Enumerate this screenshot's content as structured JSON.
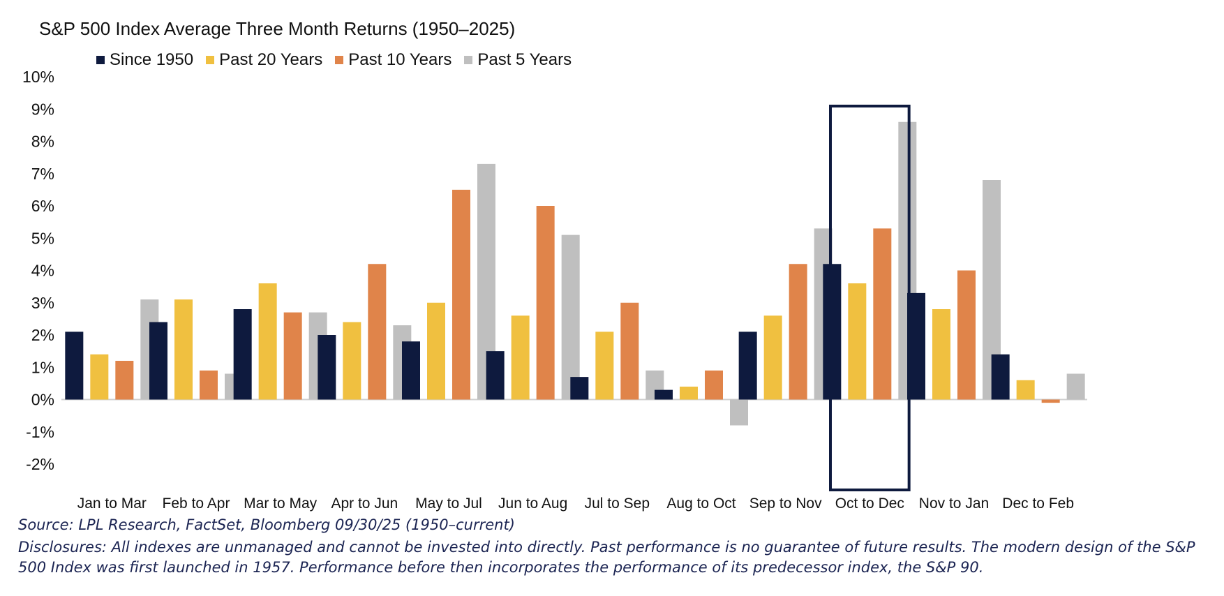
{
  "chart_data": {
    "type": "bar",
    "title": "S&P 500 Index Average Three Month Returns (1950–2025)",
    "categories": [
      "Jan to Mar",
      "Feb to Apr",
      "Mar to May",
      "Apr to Jun",
      "May to Jul",
      "Jun to Aug",
      "Jul to Sep",
      "Aug to Oct",
      "Sep to Nov",
      "Oct to Dec",
      "Nov to Jan",
      "Dec to Feb"
    ],
    "series": [
      {
        "name": "Since 1950",
        "color": "#0e1a3e",
        "values": [
          2.1,
          2.4,
          2.8,
          2.0,
          1.8,
          1.5,
          0.7,
          0.3,
          2.1,
          4.2,
          3.3,
          1.4
        ]
      },
      {
        "name": "Past 20 Years",
        "color": "#f0c040",
        "values": [
          1.4,
          3.1,
          3.6,
          2.4,
          3.0,
          2.6,
          2.1,
          0.4,
          2.6,
          3.6,
          2.8,
          0.6
        ]
      },
      {
        "name": "Past 10 Years",
        "color": "#e0844a",
        "values": [
          1.2,
          0.9,
          2.7,
          4.2,
          6.5,
          6.0,
          3.0,
          0.9,
          4.2,
          5.3,
          4.0,
          -0.1
        ]
      },
      {
        "name": "Past 5 Years",
        "color": "#bfbfbf",
        "values": [
          3.1,
          0.8,
          2.7,
          2.3,
          7.3,
          5.1,
          0.9,
          -0.8,
          5.3,
          8.6,
          6.8,
          0.8
        ]
      }
    ],
    "ylim": [
      -2,
      10
    ],
    "yticks": [
      -2,
      -1,
      0,
      1,
      2,
      3,
      4,
      5,
      6,
      7,
      8,
      9,
      10
    ],
    "ytick_labels": [
      "-2%",
      "-1%",
      "0%",
      "1%",
      "2%",
      "3%",
      "4%",
      "5%",
      "6%",
      "7%",
      "8%",
      "9%",
      "10%"
    ],
    "highlighted_category": "Oct to Dec",
    "highlight_color": "#0e1a3e",
    "grid": false,
    "legend_position": "top"
  },
  "footer": {
    "source": "Source: LPL Research, FactSet, Bloomberg 09/30/25 (1950–current)",
    "disclosure_line1": "Disclosures: All indexes are unmanaged and cannot be invested into directly. Past performance is no guarantee of future results. The modern design of the S&P",
    "disclosure_line2": "500 Index was first launched in 1957. Performance before then incorporates the performance of its predecessor index, the S&P 90."
  }
}
